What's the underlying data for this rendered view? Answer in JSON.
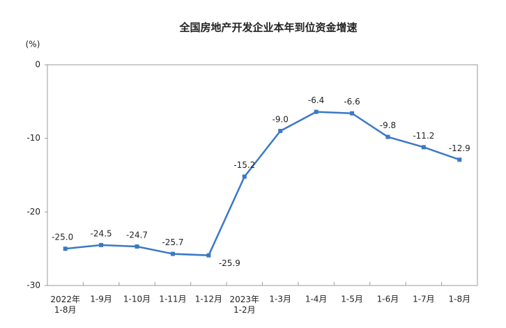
{
  "chart_data": {
    "type": "line",
    "title": "全国房地产开发企业本年到位资金增速",
    "y_unit": "(%)",
    "categories": [
      "2022年1-8月",
      "1-9月",
      "1-10月",
      "1-11月",
      "1-12月",
      "2023年1-2月",
      "1-3月",
      "1-4月",
      "1-5月",
      "1-6月",
      "1-7月",
      "1-8月"
    ],
    "series": [
      {
        "name": "本年到位资金增速",
        "color": "#3b78c5",
        "values": [
          -25.0,
          -24.5,
          -24.7,
          -25.7,
          -25.9,
          -15.2,
          -9.0,
          -6.4,
          -6.6,
          -9.8,
          -11.2,
          -12.9
        ],
        "value_labels": [
          "-25.0",
          "-24.5",
          "-24.7",
          "-25.7",
          "-25.9",
          "-15.2",
          "-9.0",
          "-6.4",
          "-6.6",
          "-9.8",
          "-11.2",
          "-12.9"
        ]
      }
    ],
    "ylim": [
      -30,
      0
    ],
    "yticks": [
      0,
      -10,
      -20,
      -30
    ],
    "grid": false
  }
}
